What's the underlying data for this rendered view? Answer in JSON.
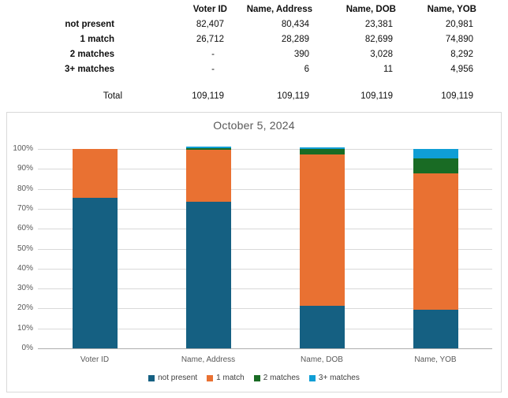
{
  "colors": {
    "not_present": "#156082",
    "one_match": "#E97132",
    "two_matches": "#196B24",
    "three_plus_matches": "#0F9ED5",
    "gridline": "#D9D9D9",
    "axis_line": "#ADADAD",
    "muted_text": "#595959",
    "legend_text": "#404040",
    "chart_border": "#D9D9D9"
  },
  "table": {
    "columns": [
      "Voter ID",
      "Name, Address",
      "Name, DOB",
      "Name, YOB"
    ],
    "rows": [
      {
        "label": "not present",
        "values": [
          "82,407",
          "80,434",
          "23,381",
          "20,981"
        ]
      },
      {
        "label": "1 match",
        "values": [
          "26,712",
          "28,289",
          "82,699",
          "74,890"
        ]
      },
      {
        "label": "2 matches",
        "values": [
          "-",
          "390",
          "3,028",
          "8,292"
        ]
      },
      {
        "label": "3+ matches",
        "values": [
          "-",
          "6",
          "11",
          "4,956"
        ]
      }
    ],
    "total": {
      "label": "Total",
      "values": [
        "109,119",
        "109,119",
        "109,119",
        "109,119"
      ]
    }
  },
  "chart_data": {
    "type": "bar",
    "variant": "stacked-100-percent",
    "title": "October 5, 2024",
    "categories": [
      "Voter ID",
      "Name, Address",
      "Name, DOB",
      "Name, YOB"
    ],
    "series": [
      {
        "name": "not present",
        "color": "#156082",
        "values": [
          82407,
          80434,
          23381,
          20981
        ]
      },
      {
        "name": "1 match",
        "color": "#E97132",
        "values": [
          26712,
          28289,
          82699,
          74890
        ]
      },
      {
        "name": "2 matches",
        "color": "#196B24",
        "values": [
          0,
          390,
          3028,
          8292
        ]
      },
      {
        "name": "3+ matches",
        "color": "#0F9ED5",
        "values": [
          0,
          6,
          11,
          4956
        ]
      }
    ],
    "totals": [
      109119,
      109119,
      109119,
      109119
    ],
    "y_ticks": [
      "100%",
      "90%",
      "80%",
      "70%",
      "60%",
      "50%",
      "40%",
      "30%",
      "20%",
      "10%",
      "0%"
    ],
    "ylim": [
      0,
      100
    ],
    "ylabel": "",
    "xlabel": "",
    "grid": true,
    "legend_position": "bottom"
  }
}
